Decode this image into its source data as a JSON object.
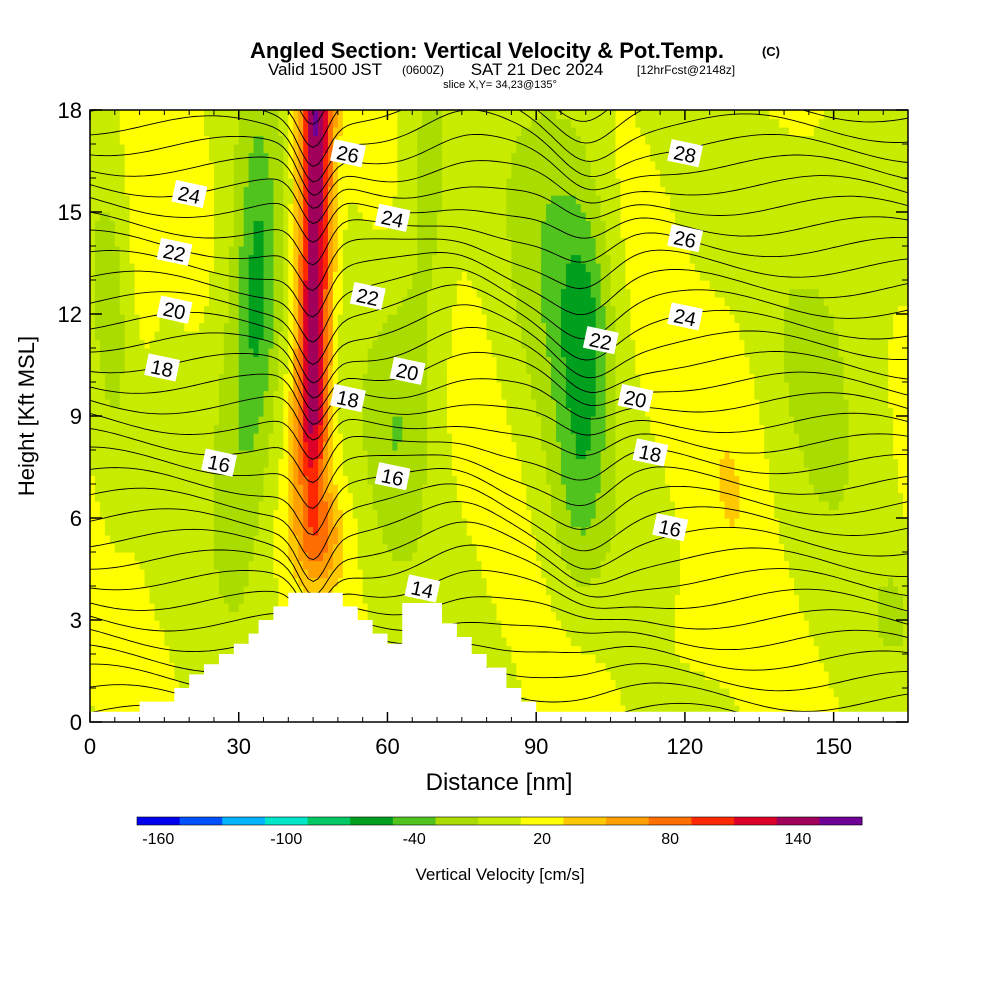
{
  "chart_data": {
    "type": "heatmap",
    "title": "Angled Section: Vertical Velocity & Pot.Temp.",
    "title_suffix": "(C)",
    "subtitle": {
      "valid": "Valid 1500 JST",
      "utc": "(0600Z)",
      "date": "SAT 21 Dec 2024",
      "fcst": "[12hrFcst@2148z]"
    },
    "slice_label": "slice X,Y= 34,23@135°",
    "xlabel": "Distance [nm]",
    "ylabel": "Height [Kft MSL]",
    "xlim": [
      0,
      165
    ],
    "ylim": [
      0,
      18
    ],
    "x_ticks": [
      "0",
      "30",
      "60",
      "90",
      "120",
      "150"
    ],
    "y_ticks": [
      "0",
      "3",
      "6",
      "9",
      "12",
      "15",
      "18"
    ],
    "colorbar": {
      "label": "Vertical Velocity [cm/s]",
      "tick_labels": [
        "-160",
        "-100",
        "-40",
        "20",
        "80",
        "140"
      ],
      "colors": [
        "#0000ee",
        "#0050ff",
        "#00b4ff",
        "#00e6c8",
        "#00c864",
        "#00a01e",
        "#50c31e",
        "#aadc00",
        "#c8eb00",
        "#ffff00",
        "#ffc800",
        "#ffa000",
        "#ff6e00",
        "#ff2800",
        "#dc0028",
        "#a0005a",
        "#6e0096"
      ]
    },
    "velocity_features": [
      {
        "x": [
          40,
          50
        ],
        "y": [
          6,
          18
        ],
        "min": 80,
        "max": 150,
        "kind": "updraft"
      },
      {
        "x": [
          28,
          40
        ],
        "y": [
          7,
          18
        ],
        "min": -60,
        "max": -30,
        "kind": "downdraft"
      },
      {
        "x": [
          90,
          110
        ],
        "y": [
          5,
          18
        ],
        "min": -50,
        "max": -20,
        "kind": "downdraft"
      }
    ],
    "theta_contour_labels": [
      {
        "value": "24",
        "x": 20,
        "y": 15.5
      },
      {
        "value": "22",
        "x": 17,
        "y": 13.8
      },
      {
        "value": "20",
        "x": 17,
        "y": 12.1
      },
      {
        "value": "18",
        "x": 14.5,
        "y": 10.4
      },
      {
        "value": "16",
        "x": 26,
        "y": 7.6
      },
      {
        "value": "26",
        "x": 52,
        "y": 16.7
      },
      {
        "value": "24",
        "x": 61,
        "y": 14.8
      },
      {
        "value": "22",
        "x": 56,
        "y": 12.5
      },
      {
        "value": "20",
        "x": 64,
        "y": 10.3
      },
      {
        "value": "18",
        "x": 52,
        "y": 9.5
      },
      {
        "value": "16",
        "x": 61,
        "y": 7.2
      },
      {
        "value": "14",
        "x": 67,
        "y": 3.9
      },
      {
        "value": "28",
        "x": 120,
        "y": 16.7
      },
      {
        "value": "26",
        "x": 120,
        "y": 14.2
      },
      {
        "value": "24",
        "x": 120,
        "y": 11.9
      },
      {
        "value": "22",
        "x": 103,
        "y": 11.2
      },
      {
        "value": "20",
        "x": 110,
        "y": 9.5
      },
      {
        "value": "18",
        "x": 113,
        "y": 7.9
      },
      {
        "value": "16",
        "x": 117,
        "y": 5.7
      }
    ],
    "terrain": {
      "x": [
        0,
        10,
        10,
        17,
        17,
        20,
        20,
        23,
        23,
        26,
        26,
        29,
        29,
        32,
        32,
        34,
        34,
        37,
        37,
        40,
        40,
        42,
        42,
        51,
        51,
        54,
        54,
        57,
        57,
        60,
        60,
        63,
        63,
        65,
        65,
        71,
        71,
        74,
        74,
        77,
        77,
        80,
        80,
        84,
        84,
        87,
        87,
        90,
        90
      ],
      "y": [
        0.3,
        0.3,
        0.6,
        0.6,
        1.0,
        1.0,
        1.4,
        1.4,
        1.7,
        1.7,
        2.0,
        2.0,
        2.3,
        2.3,
        2.6,
        2.6,
        3.0,
        3.0,
        3.4,
        3.4,
        3.8,
        3.8,
        3.8,
        3.8,
        3.4,
        3.4,
        3.0,
        3.0,
        2.6,
        2.6,
        2.3,
        2.3,
        3.5,
        3.5,
        3.5,
        3.5,
        2.9,
        2.9,
        2.5,
        2.5,
        2.0,
        2.0,
        1.6,
        1.6,
        1.0,
        1.0,
        0.6,
        0.6,
        0.3
      ]
    }
  }
}
